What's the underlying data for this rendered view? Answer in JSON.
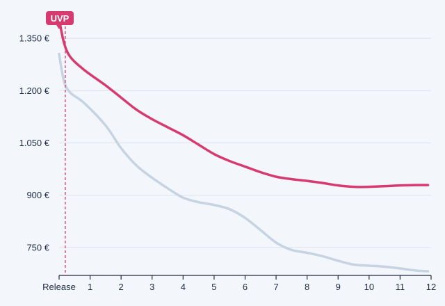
{
  "chart_data": {
    "type": "line",
    "title": "",
    "xlabel": "",
    "ylabel": "",
    "x": [
      0,
      0.15,
      0.35,
      0.8,
      1.5,
      2,
      2.5,
      3,
      3.5,
      4,
      4.5,
      5,
      5.5,
      6,
      6.5,
      7,
      7.5,
      8,
      8.5,
      9,
      9.5,
      10,
      10.5,
      11,
      11.5,
      11.9
    ],
    "x_tick_values": [
      0,
      1,
      2,
      3,
      4,
      5,
      6,
      7,
      8,
      9,
      10,
      11,
      12
    ],
    "x_tick_labels": [
      "Release",
      "1",
      "2",
      "3",
      "4",
      "5",
      "6",
      "7",
      "8",
      "9",
      "10",
      "11",
      "12"
    ],
    "xlim": [
      0,
      12
    ],
    "y_tick_values": [
      750,
      900,
      1050,
      1200,
      1350
    ],
    "y_tick_labels": [
      "750 €",
      "900 €",
      "1.050 €",
      "1.200 €",
      "1.350 €"
    ],
    "ylim": [
      670,
      1420
    ],
    "grid": true,
    "series": [
      {
        "color": "#d63a6e",
        "values": [
          1405,
          1340,
          1298,
          1260,
          1215,
          1180,
          1145,
          1118,
          1095,
          1072,
          1045,
          1018,
          998,
          982,
          966,
          953,
          946,
          941,
          935,
          928,
          924,
          924,
          926,
          928,
          929,
          929
        ]
      },
      {
        "color": "#c5d3e3",
        "values": [
          1305,
          1230,
          1195,
          1165,
          1100,
          1035,
          985,
          950,
          920,
          893,
          880,
          872,
          860,
          835,
          800,
          764,
          743,
          735,
          725,
          712,
          701,
          698,
          695,
          690,
          684,
          682
        ]
      }
    ],
    "annotations": [
      {
        "text": "UVP",
        "x": 0.2,
        "color": "#d63a6e"
      }
    ]
  }
}
